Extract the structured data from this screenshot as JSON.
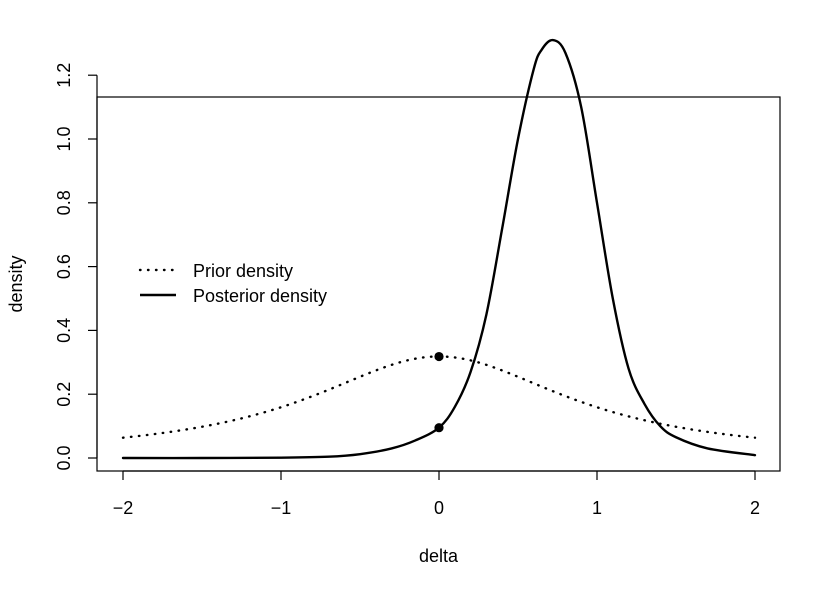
{
  "chart_data": {
    "type": "line",
    "title": "",
    "xlabel": "delta",
    "ylabel": "density",
    "xlim": [
      -2,
      2
    ],
    "ylim": [
      0,
      1.3
    ],
    "xticks": [
      -2,
      -1,
      0,
      1,
      2
    ],
    "xtick_labels": [
      "−2",
      "−1",
      "0",
      "1",
      "2"
    ],
    "yticks": [
      0.0,
      0.2,
      0.4,
      0.6,
      0.8,
      1.0,
      1.2
    ],
    "ytick_labels": [
      "0.0",
      "0.2",
      "0.4",
      "0.6",
      "0.8",
      "1.0",
      "1.2"
    ],
    "grid": false,
    "legend_position": "left",
    "series": [
      {
        "name": "Prior density",
        "style": "dotted",
        "color": "#000000",
        "x": [
          -2.0,
          -1.75,
          -1.5,
          -1.25,
          -1.0,
          -0.75,
          -0.5,
          -0.25,
          0.0,
          0.25,
          0.5,
          0.75,
          1.0,
          1.25,
          1.5,
          1.75,
          2.0
        ],
        "y": [
          0.064,
          0.079,
          0.098,
          0.125,
          0.159,
          0.204,
          0.255,
          0.3,
          0.318,
          0.3,
          0.255,
          0.204,
          0.159,
          0.125,
          0.098,
          0.079,
          0.064
        ]
      },
      {
        "name": "Posterior density",
        "style": "solid",
        "color": "#000000",
        "x": [
          -2.0,
          -1.5,
          -1.0,
          -0.7,
          -0.5,
          -0.3,
          -0.15,
          0.0,
          0.1,
          0.2,
          0.3,
          0.4,
          0.5,
          0.6,
          0.65,
          0.72,
          0.8,
          0.9,
          1.0,
          1.1,
          1.2,
          1.3,
          1.4,
          1.5,
          1.7,
          2.0
        ],
        "y": [
          0.0,
          0.0,
          0.001,
          0.004,
          0.012,
          0.03,
          0.055,
          0.095,
          0.16,
          0.27,
          0.45,
          0.72,
          1.0,
          1.22,
          1.28,
          1.31,
          1.27,
          1.1,
          0.8,
          0.5,
          0.28,
          0.17,
          0.1,
          0.065,
          0.03,
          0.009
        ]
      }
    ],
    "points": [
      {
        "x": 0,
        "y": 0.318
      },
      {
        "x": 0,
        "y": 0.095
      }
    ]
  }
}
